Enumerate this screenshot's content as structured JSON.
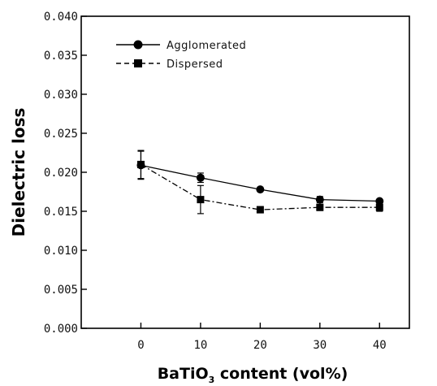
{
  "chart_data": {
    "type": "line",
    "title": "",
    "xlabel": {
      "prefix": "BaTiO",
      "subscript": "3",
      "suffix": " content (vol%)"
    },
    "ylabel": "Dielectric loss",
    "xlim": [
      -10,
      45
    ],
    "ylim": [
      0.0,
      0.04
    ],
    "x_ticks": [
      0,
      10,
      20,
      30,
      40
    ],
    "x_tick_labels": [
      "0",
      "10",
      "20",
      "30",
      "40"
    ],
    "y_ticks": [
      0.0,
      0.005,
      0.01,
      0.015,
      0.02,
      0.025,
      0.03,
      0.035,
      0.04
    ],
    "y_tick_labels": [
      "0.000",
      "0.005",
      "0.010",
      "0.015",
      "0.020",
      "0.025",
      "0.030",
      "0.035",
      "0.040"
    ],
    "grid": false,
    "legend_position": "top-left",
    "series": [
      {
        "name": "Agglomerated",
        "marker": "circle",
        "line_style": "solid",
        "x": [
          0,
          10,
          20,
          30,
          40
        ],
        "y": [
          0.0209,
          0.0193,
          0.0178,
          0.0165,
          0.0163
        ],
        "err": [
          0.0018,
          0.0006,
          0.0002,
          0.0004,
          0.0002
        ]
      },
      {
        "name": "Dispersed",
        "marker": "square",
        "line_style": "dashdot",
        "x": [
          0,
          10,
          20,
          30,
          40
        ],
        "y": [
          0.021,
          0.0165,
          0.0152,
          0.0155,
          0.0155
        ],
        "err": [
          0.0018,
          0.0018,
          0.0004,
          0.0004,
          0.0005
        ]
      }
    ]
  }
}
